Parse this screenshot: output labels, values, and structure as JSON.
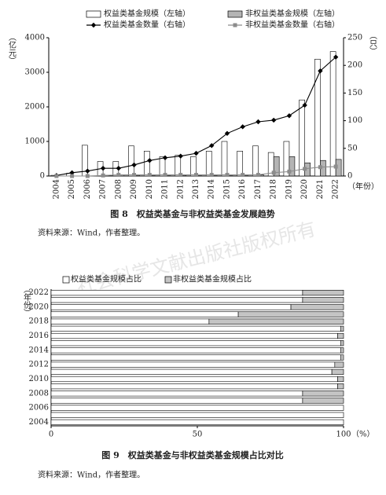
{
  "watermark": "社会科学文献出版社版权所有",
  "chart_data": [
    {
      "type": "combo",
      "caption": "图 8　权益类基金与非权益类基金发展趋势",
      "source": "资料来源：Wind，作者整理。",
      "ylabel": "（亿元）",
      "y2label": "（只）",
      "xlabel": "（年份）",
      "categories": [
        "2004",
        "2005",
        "2006",
        "2007",
        "2008",
        "2009",
        "2010",
        "2011",
        "2012",
        "2013",
        "2014",
        "2015",
        "2016",
        "2017",
        "2018",
        "2019",
        "2020",
        "2021",
        "2022"
      ],
      "ylim": [
        0,
        4000
      ],
      "yticks": [
        0,
        1000,
        2000,
        3000,
        4000
      ],
      "y2lim": [
        0,
        250
      ],
      "y2ticks": [
        0,
        50,
        100,
        150,
        200,
        250
      ],
      "series": [
        {
          "name": "权益类基金规模（左轴）",
          "type": "bar",
          "color": "#ffffff",
          "values": [
            20,
            80,
            890,
            420,
            420,
            870,
            720,
            560,
            600,
            560,
            720,
            1000,
            720,
            870,
            680,
            1000,
            2200,
            3380,
            3600
          ]
        },
        {
          "name": "非权益类基金规模（左轴）",
          "type": "bar",
          "color": "#b4b4b4",
          "values": [
            0,
            0,
            0,
            20,
            30,
            20,
            10,
            10,
            20,
            10,
            10,
            10,
            10,
            30,
            560,
            560,
            380,
            450,
            480
          ]
        },
        {
          "name": "权益类基金数量（右轴）",
          "type": "line",
          "axis": "y2",
          "marker": "diamond",
          "color": "#000000",
          "values": [
            1,
            6,
            9,
            14,
            14,
            20,
            28,
            33,
            36,
            41,
            55,
            77,
            89,
            98,
            101,
            109,
            128,
            190,
            215
          ]
        },
        {
          "name": "非权益类基金数量（右轴）",
          "type": "line",
          "axis": "y2",
          "marker": "square",
          "color": "#8c8c8c",
          "values": [
            0,
            0,
            0,
            1,
            2,
            2,
            2,
            2,
            2,
            2,
            2,
            2,
            2,
            2,
            6,
            8,
            13,
            16,
            17
          ]
        }
      ]
    },
    {
      "type": "stacked_bar_h",
      "caption": "图 9　权益类基金与非权益类基金规模占比对比",
      "source": "资料来源：Wind，作者整理。",
      "ylabel": "（年份）",
      "xlabel": "（%）",
      "categories": [
        "2004",
        null,
        "2006",
        null,
        "2008",
        null,
        "2010",
        null,
        "2012",
        null,
        "2014",
        null,
        "2016",
        null,
        "2018",
        null,
        "2020",
        null,
        "2022"
      ],
      "xlim": [
        0,
        100
      ],
      "xticks": [
        0,
        50,
        100
      ],
      "series": [
        {
          "name": "权益类基金规模占比",
          "color": "#ffffff",
          "values": [
            100,
            100,
            100,
            86,
            86,
            98,
            98,
            96,
            97,
            99,
            99,
            99,
            98,
            99,
            54,
            64,
            82,
            86,
            86
          ]
        },
        {
          "name": "非权益类基金规模占比",
          "color": "#c4c4c4",
          "values": [
            0,
            0,
            0,
            14,
            14,
            2,
            2,
            4,
            3,
            1,
            1,
            1,
            2,
            1,
            46,
            36,
            18,
            14,
            14
          ]
        }
      ]
    }
  ]
}
